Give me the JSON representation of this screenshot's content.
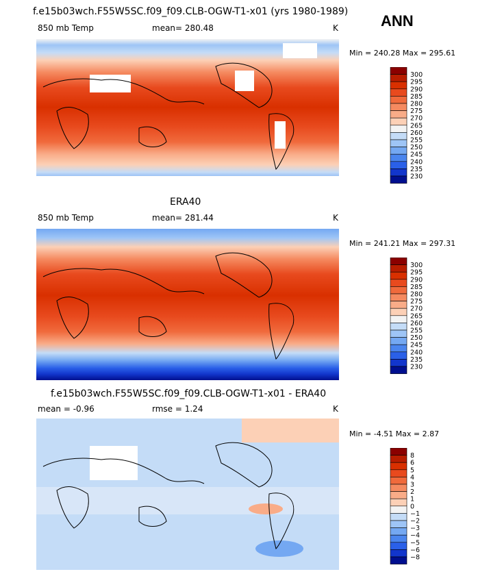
{
  "season": "ANN",
  "chart_data": [
    {
      "type": "heatmap",
      "title": "f.e15b03wch.F55W5SC.f09_f09.CLB-OGW-T1-x01 (yrs 1980-1989)",
      "variable": "850 mb Temp",
      "stat_text": "mean= 280.48",
      "units": "K",
      "min_max": "Min = 240.28 Max = 295.61",
      "colorbar": [
        230,
        235,
        240,
        245,
        250,
        255,
        260,
        265,
        270,
        275,
        280,
        285,
        290,
        295,
        300
      ],
      "colorbar_labels": [
        "300",
        "295",
        "290",
        "285",
        "280",
        "275",
        "270",
        "265",
        "260",
        "255",
        "250",
        "245",
        "240",
        "235",
        "230"
      ],
      "colors": [
        "#8b0000",
        "#b81d00",
        "#d93000",
        "#e84a1e",
        "#f06a3c",
        "#f58a60",
        "#f9ac88",
        "#fcd0b6",
        "#f3f3f3",
        "#c4dcf7",
        "#9ec5f6",
        "#74a8f2",
        "#4a85ee",
        "#2a60e8",
        "#1236cc",
        "#000f8f"
      ]
    },
    {
      "type": "heatmap",
      "title": "ERA40",
      "variable": "850 mb Temp",
      "stat_text": "mean= 281.44",
      "units": "K",
      "min_max": "Min = 241.21 Max = 297.31",
      "colorbar": [
        230,
        235,
        240,
        245,
        250,
        255,
        260,
        265,
        270,
        275,
        280,
        285,
        290,
        295,
        300
      ],
      "colorbar_labels": [
        "300",
        "295",
        "290",
        "285",
        "280",
        "275",
        "270",
        "265",
        "260",
        "255",
        "250",
        "245",
        "240",
        "235",
        "230"
      ],
      "colors": [
        "#8b0000",
        "#b81d00",
        "#d93000",
        "#e84a1e",
        "#f06a3c",
        "#f58a60",
        "#f9ac88",
        "#fcd0b6",
        "#f3f3f3",
        "#c4dcf7",
        "#9ec5f6",
        "#74a8f2",
        "#4a85ee",
        "#2a60e8",
        "#1236cc",
        "#000f8f"
      ]
    },
    {
      "type": "heatmap",
      "title": "f.e15b03wch.F55W5SC.f09_f09.CLB-OGW-T1-x01 - ERA40",
      "variable": "mean =   -0.96",
      "stat_text": "rmse =    1.24",
      "units": "K",
      "min_max": "Min =  -4.51 Max =   2.87",
      "colorbar": [
        -8,
        -6,
        -5,
        -4,
        -3,
        -2,
        -1,
        0,
        1,
        2,
        3,
        4,
        5,
        6,
        8
      ],
      "colorbar_labels": [
        "8",
        "6",
        "5",
        "4",
        "3",
        "2",
        "1",
        "0",
        "−1",
        "−2",
        "−3",
        "−4",
        "−5",
        "−6",
        "−8"
      ],
      "colors": [
        "#8b0000",
        "#b81d00",
        "#d93000",
        "#e84a1e",
        "#f06a3c",
        "#f58a60",
        "#f9ac88",
        "#fcd0b6",
        "#f3f3f3",
        "#c4dcf7",
        "#9ec5f6",
        "#74a8f2",
        "#4a85ee",
        "#2a60e8",
        "#1236cc",
        "#000f8f"
      ]
    }
  ]
}
